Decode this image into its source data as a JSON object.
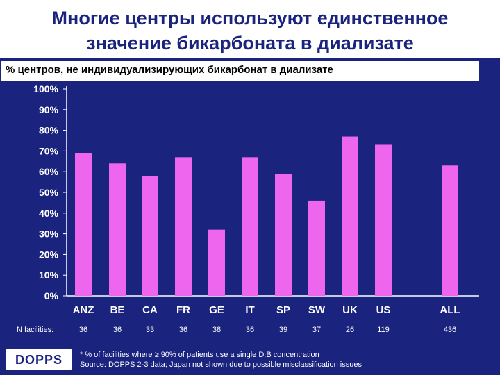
{
  "title_line1": "Многие центры используют единственное",
  "title_line2": "значение бикарбоната в диализате",
  "subtitle": "% центров, не индивидуализирующих  бикарбонат в диализате",
  "colors": {
    "background": "#1a237e",
    "bar": "#ee66ee",
    "text": "#ffffff"
  },
  "chart_data": {
    "type": "bar",
    "categories": [
      "ANZ",
      "BE",
      "CA",
      "FR",
      "GE",
      "IT",
      "SP",
      "SW",
      "UK",
      "US",
      "ALL"
    ],
    "values": [
      69,
      64,
      58,
      67,
      32,
      67,
      59,
      46,
      77,
      73,
      63
    ],
    "y_ticks": [
      "0%",
      "10%",
      "20%",
      "30%",
      "40%",
      "50%",
      "60%",
      "70%",
      "80%",
      "90%",
      "100%"
    ],
    "ylim": [
      0,
      100
    ],
    "n_label": "N facilities:",
    "n_values": [
      "36",
      "36",
      "33",
      "36",
      "38",
      "36",
      "39",
      "37",
      "26",
      "119",
      "436"
    ]
  },
  "footnote1": "* % of facilities where ≥ 90% of patients use a single D.B concentration",
  "footnote2": "Source: DOPPS 2-3 data; Japan not shown due to possible misclassification issues",
  "logo_text": "DOPPS"
}
